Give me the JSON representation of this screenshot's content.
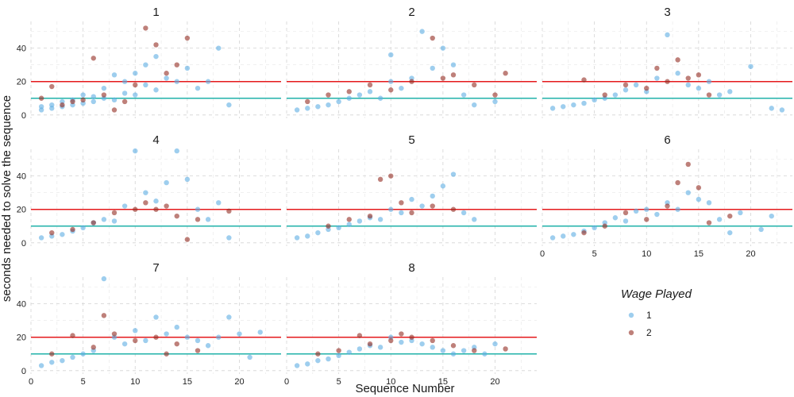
{
  "chart_data": {
    "type": "scatter",
    "facet_by": "panel",
    "panels": [
      "1",
      "2",
      "3",
      "4",
      "5",
      "6",
      "7",
      "8"
    ],
    "xlabel": "Sequence Number",
    "ylabel": "seconds needed to solve the sequence",
    "xlim": [
      0,
      24
    ],
    "ylim": [
      -2,
      56
    ],
    "x_ticks": [
      0,
      5,
      10,
      15,
      20
    ],
    "y_ticks": [
      0,
      20,
      40
    ],
    "grid": true,
    "reference_lines": [
      {
        "y": 20,
        "color": "#e41a1c"
      },
      {
        "y": 10,
        "color": "#20b2aa"
      }
    ],
    "legend": {
      "title": "Wage Played",
      "position": "right",
      "entries": [
        {
          "label": "1",
          "color": "#5dade2"
        },
        {
          "label": "2",
          "color": "#922b21"
        }
      ]
    },
    "series": [
      {
        "name": "1",
        "color": "#5dade2",
        "panels": {
          "1": [
            [
              1,
              3
            ],
            [
              1,
              5
            ],
            [
              2,
              4
            ],
            [
              2,
              6
            ],
            [
              3,
              5
            ],
            [
              3,
              8
            ],
            [
              4,
              6
            ],
            [
              4,
              9
            ],
            [
              5,
              7
            ],
            [
              5,
              12
            ],
            [
              6,
              8
            ],
            [
              6,
              11
            ],
            [
              7,
              10
            ],
            [
              7,
              16
            ],
            [
              8,
              9
            ],
            [
              8,
              24
            ],
            [
              9,
              13
            ],
            [
              9,
              20
            ],
            [
              10,
              12
            ],
            [
              10,
              25
            ],
            [
              11,
              18
            ],
            [
              11,
              30
            ],
            [
              12,
              15
            ],
            [
              12,
              35
            ],
            [
              13,
              22
            ],
            [
              14,
              20
            ],
            [
              15,
              28
            ],
            [
              16,
              16
            ],
            [
              17,
              20
            ],
            [
              18,
              40
            ],
            [
              19,
              6
            ]
          ],
          "2": [
            [
              1,
              3
            ],
            [
              2,
              4
            ],
            [
              3,
              5
            ],
            [
              4,
              6
            ],
            [
              5,
              8
            ],
            [
              6,
              10
            ],
            [
              7,
              12
            ],
            [
              8,
              14
            ],
            [
              9,
              10
            ],
            [
              10,
              20
            ],
            [
              10,
              36
            ],
            [
              11,
              16
            ],
            [
              12,
              22
            ],
            [
              13,
              50
            ],
            [
              14,
              28
            ],
            [
              15,
              40
            ],
            [
              16,
              30
            ],
            [
              17,
              12
            ],
            [
              18,
              6
            ],
            [
              20,
              8
            ]
          ],
          "3": [
            [
              1,
              4
            ],
            [
              2,
              5
            ],
            [
              3,
              6
            ],
            [
              4,
              7
            ],
            [
              5,
              9
            ],
            [
              6,
              10
            ],
            [
              7,
              12
            ],
            [
              8,
              15
            ],
            [
              9,
              18
            ],
            [
              10,
              14
            ],
            [
              11,
              22
            ],
            [
              12,
              48
            ],
            [
              13,
              25
            ],
            [
              14,
              18
            ],
            [
              15,
              16
            ],
            [
              16,
              20
            ],
            [
              17,
              12
            ],
            [
              18,
              14
            ],
            [
              20,
              29
            ],
            [
              22,
              4
            ],
            [
              23,
              3
            ]
          ],
          "4": [
            [
              1,
              3
            ],
            [
              2,
              4
            ],
            [
              3,
              5
            ],
            [
              4,
              7
            ],
            [
              5,
              9
            ],
            [
              6,
              12
            ],
            [
              7,
              14
            ],
            [
              8,
              13
            ],
            [
              9,
              22
            ],
            [
              10,
              55
            ],
            [
              11,
              30
            ],
            [
              12,
              25
            ],
            [
              13,
              36
            ],
            [
              14,
              55
            ],
            [
              15,
              38
            ],
            [
              16,
              20
            ],
            [
              17,
              14
            ],
            [
              18,
              24
            ],
            [
              19,
              3
            ]
          ],
          "5": [
            [
              1,
              3
            ],
            [
              2,
              4
            ],
            [
              3,
              6
            ],
            [
              4,
              8
            ],
            [
              5,
              9
            ],
            [
              6,
              11
            ],
            [
              7,
              13
            ],
            [
              8,
              15
            ],
            [
              9,
              14
            ],
            [
              10,
              20
            ],
            [
              11,
              18
            ],
            [
              12,
              26
            ],
            [
              13,
              22
            ],
            [
              14,
              28
            ],
            [
              15,
              34
            ],
            [
              16,
              41
            ],
            [
              17,
              18
            ],
            [
              18,
              14
            ]
          ],
          "6": [
            [
              1,
              3
            ],
            [
              2,
              4
            ],
            [
              3,
              5
            ],
            [
              4,
              7
            ],
            [
              5,
              9
            ],
            [
              6,
              12
            ],
            [
              7,
              15
            ],
            [
              8,
              13
            ],
            [
              9,
              19
            ],
            [
              10,
              20
            ],
            [
              11,
              17
            ],
            [
              12,
              24
            ],
            [
              13,
              20
            ],
            [
              14,
              30
            ],
            [
              15,
              26
            ],
            [
              16,
              24
            ],
            [
              17,
              14
            ],
            [
              18,
              6
            ],
            [
              19,
              18
            ],
            [
              21,
              8
            ],
            [
              22,
              16
            ]
          ],
          "7": [
            [
              1,
              3
            ],
            [
              2,
              5
            ],
            [
              3,
              6
            ],
            [
              4,
              8
            ],
            [
              5,
              10
            ],
            [
              6,
              12
            ],
            [
              7,
              55
            ],
            [
              8,
              20
            ],
            [
              9,
              16
            ],
            [
              10,
              24
            ],
            [
              11,
              18
            ],
            [
              12,
              32
            ],
            [
              13,
              22
            ],
            [
              14,
              26
            ],
            [
              15,
              20
            ],
            [
              16,
              18
            ],
            [
              17,
              15
            ],
            [
              18,
              20
            ],
            [
              19,
              32
            ],
            [
              20,
              22
            ],
            [
              21,
              8
            ],
            [
              22,
              23
            ]
          ],
          "8": [
            [
              1,
              3
            ],
            [
              2,
              4
            ],
            [
              3,
              6
            ],
            [
              4,
              7
            ],
            [
              5,
              9
            ],
            [
              6,
              11
            ],
            [
              7,
              13
            ],
            [
              8,
              15
            ],
            [
              9,
              14
            ],
            [
              10,
              20
            ],
            [
              11,
              17
            ],
            [
              12,
              18
            ],
            [
              13,
              16
            ],
            [
              14,
              14
            ],
            [
              15,
              12
            ],
            [
              16,
              10
            ],
            [
              17,
              12
            ],
            [
              18,
              14
            ],
            [
              19,
              10
            ],
            [
              20,
              16
            ]
          ]
        }
      },
      {
        "name": "2",
        "color": "#922b21",
        "panels": {
          "1": [
            [
              1,
              10
            ],
            [
              2,
              17
            ],
            [
              3,
              6
            ],
            [
              4,
              8
            ],
            [
              5,
              9
            ],
            [
              6,
              34
            ],
            [
              7,
              12
            ],
            [
              8,
              3
            ],
            [
              9,
              8
            ],
            [
              10,
              18
            ],
            [
              11,
              52
            ],
            [
              12,
              42
            ],
            [
              13,
              25
            ],
            [
              14,
              30
            ],
            [
              15,
              46
            ]
          ],
          "2": [
            [
              2,
              8
            ],
            [
              4,
              12
            ],
            [
              6,
              14
            ],
            [
              8,
              18
            ],
            [
              10,
              15
            ],
            [
              12,
              20
            ],
            [
              14,
              46
            ],
            [
              15,
              22
            ],
            [
              16,
              24
            ],
            [
              18,
              18
            ],
            [
              20,
              12
            ],
            [
              21,
              25
            ]
          ],
          "3": [
            [
              4,
              21
            ],
            [
              6,
              12
            ],
            [
              8,
              18
            ],
            [
              10,
              16
            ],
            [
              11,
              28
            ],
            [
              12,
              20
            ],
            [
              13,
              33
            ],
            [
              14,
              22
            ],
            [
              15,
              24
            ],
            [
              16,
              12
            ]
          ],
          "4": [
            [
              2,
              6
            ],
            [
              4,
              8
            ],
            [
              6,
              12
            ],
            [
              8,
              18
            ],
            [
              10,
              20
            ],
            [
              11,
              24
            ],
            [
              12,
              20
            ],
            [
              13,
              22
            ],
            [
              14,
              16
            ],
            [
              15,
              2
            ],
            [
              16,
              14
            ],
            [
              19,
              19
            ]
          ],
          "5": [
            [
              4,
              10
            ],
            [
              6,
              14
            ],
            [
              8,
              16
            ],
            [
              9,
              38
            ],
            [
              10,
              40
            ],
            [
              11,
              24
            ],
            [
              12,
              18
            ],
            [
              14,
              22
            ],
            [
              16,
              20
            ]
          ],
          "6": [
            [
              4,
              6
            ],
            [
              6,
              10
            ],
            [
              8,
              18
            ],
            [
              10,
              14
            ],
            [
              12,
              22
            ],
            [
              13,
              36
            ],
            [
              14,
              47
            ],
            [
              15,
              33
            ],
            [
              16,
              12
            ],
            [
              18,
              16
            ]
          ],
          "7": [
            [
              2,
              10
            ],
            [
              4,
              21
            ],
            [
              6,
              14
            ],
            [
              7,
              33
            ],
            [
              8,
              22
            ],
            [
              10,
              18
            ],
            [
              12,
              20
            ],
            [
              13,
              10
            ],
            [
              14,
              16
            ],
            [
              16,
              12
            ]
          ],
          "8": [
            [
              3,
              10
            ],
            [
              5,
              12
            ],
            [
              7,
              21
            ],
            [
              8,
              16
            ],
            [
              10,
              18
            ],
            [
              11,
              22
            ],
            [
              12,
              20
            ],
            [
              14,
              18
            ],
            [
              16,
              15
            ],
            [
              18,
              12
            ],
            [
              21,
              13
            ]
          ]
        }
      }
    ]
  }
}
